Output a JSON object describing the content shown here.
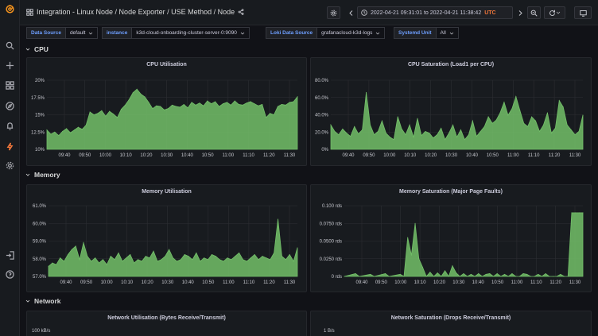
{
  "header": {
    "breadcrumb": "Integration - Linux Node  / Node Exporter / USE Method / Node",
    "time_range": "2022-04-21 09:31:01 to 2022-04-21 11:38:42",
    "timezone": "UTC"
  },
  "variables": [
    {
      "label": "Data Source",
      "value": "default"
    },
    {
      "label": "instance",
      "value": "k3d-cloud-onboarding-cluster-server-0:9090"
    },
    {
      "label": "Loki Data Source",
      "value": "grafanacloud-k3d-logs"
    },
    {
      "label": "Systemd Unit",
      "value": "All"
    }
  ],
  "rows": {
    "cpu": "CPU",
    "memory": "Memory",
    "network": "Network"
  },
  "colors": {
    "series": "#73bf69",
    "background": "#111217",
    "panel": "#181b1f",
    "timezone": "#f2773b"
  },
  "sidebar_icons": [
    "grafana-logo-icon",
    "search-icon",
    "plus-icon",
    "dashboards-icon",
    "explore-icon",
    "alerting-icon",
    "lightning-icon",
    "gear-icon",
    "sign-in-icon",
    "help-icon"
  ],
  "panels": {
    "cpu_util": {
      "title": "CPU Utilisation"
    },
    "cpu_sat": {
      "title": "CPU Saturation (Load1 per CPU)"
    },
    "mem_util": {
      "title": "Memory Utilisation"
    },
    "mem_sat": {
      "title": "Memory Saturation (Major Page Faults)"
    },
    "net_util": {
      "title": "Network Utilisation (Bytes Receive/Transmit)"
    },
    "net_sat": {
      "title": "Network Saturation (Drops Receive/Transmit)"
    }
  },
  "chart_data": [
    {
      "type": "area",
      "title": "CPU Utilisation",
      "x_ticks": [
        "09:40",
        "09:50",
        "10:00",
        "10:10",
        "10:20",
        "10:30",
        "10:40",
        "10:50",
        "11:00",
        "11:10",
        "11:20",
        "11:30"
      ],
      "y_ticks": [
        "10%",
        "12.5%",
        "15%",
        "17.5%",
        "20%"
      ],
      "ylim": [
        10,
        20
      ],
      "x": [
        0,
        2,
        4,
        6,
        8,
        10,
        12,
        14,
        16,
        18,
        20,
        22,
        24,
        26,
        28,
        30,
        32,
        34,
        36,
        38,
        40,
        42,
        44,
        46,
        48,
        50,
        52,
        54,
        56,
        58,
        60,
        62,
        64,
        66,
        68,
        70,
        72,
        74,
        76,
        78,
        80,
        82,
        84,
        86,
        88,
        90,
        92,
        94,
        96,
        98,
        100,
        102,
        104,
        106,
        108,
        110,
        112,
        114,
        116,
        118,
        120,
        122,
        124,
        126,
        128
      ],
      "values": [
        12.8,
        12.2,
        12.5,
        12.0,
        12.6,
        13.0,
        12.4,
        12.8,
        13.2,
        12.9,
        13.5,
        15.4,
        15.0,
        15.2,
        15.6,
        14.8,
        15.5,
        15.1,
        14.6,
        15.8,
        16.4,
        17.2,
        18.2,
        18.7,
        18.0,
        17.6,
        16.8,
        15.9,
        16.3,
        16.2,
        15.7,
        15.9,
        16.4,
        16.2,
        16.1,
        16.5,
        16.0,
        16.8,
        16.4,
        16.7,
        16.3,
        17.0,
        16.6,
        16.9,
        16.2,
        16.6,
        16.8,
        16.4,
        17.0,
        16.5,
        16.4,
        16.7,
        16.9,
        16.6,
        16.3,
        16.5,
        14.6,
        15.2,
        15.0,
        16.2,
        16.5,
        16.4,
        16.8,
        16.9,
        17.6
      ]
    },
    {
      "type": "area",
      "title": "CPU Saturation (Load1 per CPU)",
      "x_ticks": [
        "09:40",
        "09:50",
        "10:00",
        "10:10",
        "10:20",
        "10:30",
        "10:40",
        "10:50",
        "11:00",
        "11:10",
        "11:20",
        "11:30"
      ],
      "y_ticks": [
        "0%",
        "20.0%",
        "40.0%",
        "60.0%",
        "80.0%"
      ],
      "ylim": [
        0,
        85
      ],
      "x": [
        0,
        2,
        4,
        6,
        8,
        10,
        12,
        14,
        16,
        18,
        20,
        22,
        24,
        26,
        28,
        30,
        32,
        34,
        36,
        38,
        40,
        42,
        44,
        46,
        48,
        50,
        52,
        54,
        56,
        58,
        60,
        62,
        64,
        66,
        68,
        70,
        72,
        74,
        76,
        78,
        80,
        82,
        84,
        86,
        88,
        90,
        92,
        94,
        96,
        98,
        100,
        102,
        104,
        106,
        108,
        110,
        112,
        114,
        116,
        118,
        120,
        122,
        124,
        126,
        128
      ],
      "values": [
        30,
        22,
        18,
        25,
        20,
        16,
        28,
        19,
        24,
        70,
        30,
        18,
        22,
        35,
        20,
        15,
        12,
        40,
        25,
        18,
        30,
        15,
        38,
        17,
        22,
        20,
        14,
        18,
        26,
        12,
        20,
        30,
        15,
        24,
        12,
        18,
        35,
        16,
        22,
        28,
        40,
        32,
        36,
        45,
        58,
        42,
        50,
        65,
        48,
        32,
        28,
        40,
        35,
        22,
        30,
        45,
        20,
        26,
        60,
        52,
        30,
        24,
        18,
        22,
        42
      ]
    },
    {
      "type": "area",
      "title": "Memory Utilisation",
      "x_ticks": [
        "09:40",
        "09:50",
        "10:00",
        "10:10",
        "10:20",
        "10:30",
        "10:40",
        "10:50",
        "11:00",
        "11:10",
        "11:20",
        "11:30"
      ],
      "y_ticks": [
        "57.0%",
        "58.0%",
        "59.0%",
        "60.0%",
        "61.0%"
      ],
      "ylim": [
        57,
        61.2
      ],
      "x": [
        0,
        2,
        4,
        6,
        8,
        10,
        12,
        14,
        16,
        18,
        20,
        22,
        24,
        26,
        28,
        30,
        32,
        34,
        36,
        38,
        40,
        42,
        44,
        46,
        48,
        50,
        52,
        54,
        56,
        58,
        60,
        62,
        64,
        66,
        68,
        70,
        72,
        74,
        76,
        78,
        80,
        82,
        84,
        86,
        88,
        90,
        92,
        94,
        96,
        98,
        100,
        102,
        104,
        106,
        108,
        110,
        112,
        114,
        116,
        118,
        120,
        122,
        124,
        126,
        128
      ],
      "values": [
        57.6,
        57.8,
        57.7,
        58.1,
        57.9,
        58.3,
        58.6,
        58.8,
        58.0,
        59.0,
        58.2,
        57.9,
        58.1,
        57.8,
        58.0,
        57.7,
        58.2,
        58.0,
        58.4,
        57.9,
        58.1,
        58.3,
        57.8,
        58.0,
        57.9,
        58.2,
        58.1,
        58.5,
        57.9,
        58.0,
        58.2,
        58.6,
        58.1,
        57.9,
        58.0,
        58.3,
        58.2,
        58.0,
        58.4,
        57.9,
        58.1,
        58.0,
        58.3,
        58.2,
        58.0,
        57.9,
        58.1,
        58.0,
        58.2,
        58.4,
        58.0,
        57.9,
        58.1,
        58.3,
        58.0,
        58.2,
        58.1,
        58.0,
        58.4,
        60.4,
        58.2,
        58.0,
        58.3,
        57.9,
        58.7
      ]
    },
    {
      "type": "area",
      "title": "Memory Saturation (Major Page Faults)",
      "x_ticks": [
        "09:40",
        "09:50",
        "10:00",
        "10:10",
        "10:20",
        "10:30",
        "10:40",
        "10:50",
        "11:00",
        "11:10",
        "11:20",
        "11:30"
      ],
      "y_ticks": [
        "0 rds",
        "0.0250 rds",
        "0.0500 rds",
        "0.0750 rds",
        "0.100 rds"
      ],
      "ylim": [
        0,
        0.1
      ],
      "x": [
        0,
        6,
        8,
        14,
        16,
        22,
        24,
        30,
        32,
        34,
        36,
        38,
        40,
        42,
        44,
        46,
        48,
        50,
        52,
        54,
        56,
        58,
        60,
        62,
        64,
        66,
        68,
        70,
        72,
        74,
        76,
        78,
        80,
        82,
        84,
        86,
        88,
        90,
        92,
        94,
        96,
        98,
        100,
        102,
        104,
        106,
        108,
        110,
        112,
        114,
        116,
        118,
        120,
        122,
        124,
        126,
        128
      ],
      "values": [
        0,
        0.004,
        0,
        0.003,
        0,
        0.004,
        0,
        0.003,
        0,
        0.055,
        0.03,
        0.075,
        0.025,
        0.013,
        0,
        0.006,
        0,
        0.005,
        0,
        0.008,
        0,
        0.015,
        0.005,
        0,
        0.004,
        0,
        0.003,
        0,
        0.004,
        0,
        0.003,
        0.004,
        0,
        0.004,
        0,
        0.003,
        0,
        0.004,
        0,
        0,
        0.004,
        0.003,
        0,
        0,
        0.003,
        0,
        0.004,
        0,
        0,
        0,
        0.003,
        0,
        0,
        0.09,
        0.09,
        0.09,
        0.09
      ]
    }
  ]
}
